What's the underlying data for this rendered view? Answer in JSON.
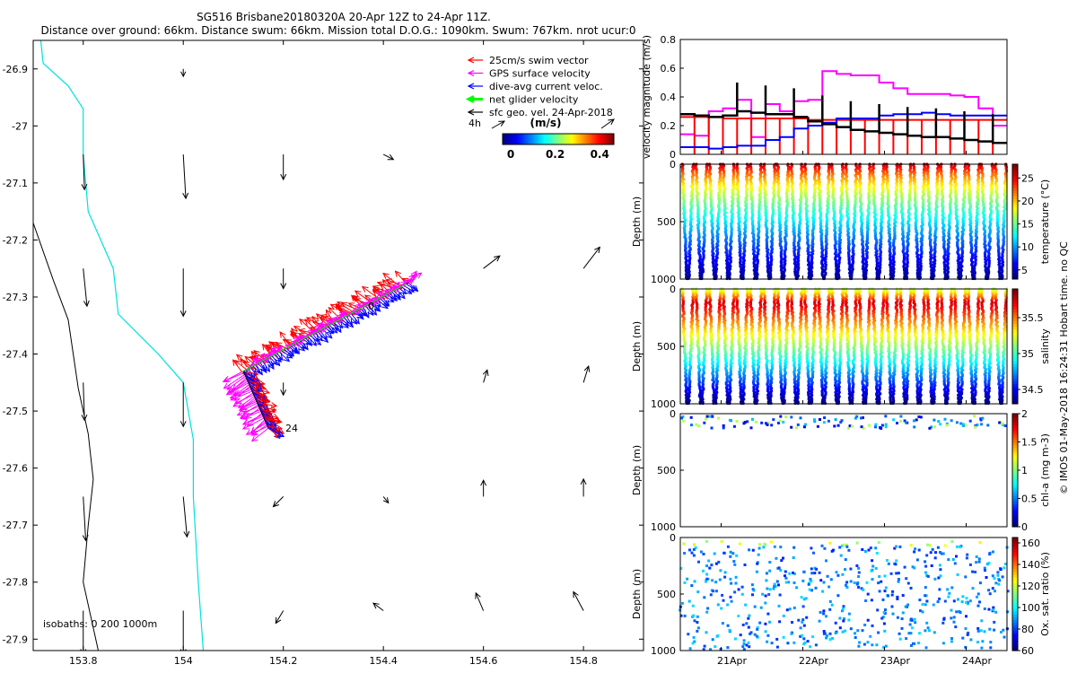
{
  "header": {
    "line1": "SG516 Brisbane20180320A 20-Apr 12Z to 24-Apr 11Z.",
    "line2": "Distance over ground: 66km. Distance swum: 66km. Mission total D.O.G.: 1090km. Swum: 767km. nrot ucur:0"
  },
  "colors": {
    "swim": "#ff0000",
    "gps": "#ff00ff",
    "dac": "#0000ff",
    "net": "#00ff00",
    "sfc": "#000000",
    "coast": "#00e0e0",
    "isobath": "#000000",
    "mag_gps": "#ff00ff",
    "mag_swim": "#ff0000",
    "mag_dac": "#0000ff",
    "mag_net": "#000000"
  },
  "chart_data": [
    {
      "type": "quiver-map",
      "xlim": [
        153.7,
        154.92
      ],
      "ylim": [
        -27.92,
        -26.85
      ],
      "xticks": [
        153.8,
        154,
        154.2,
        154.4,
        154.6,
        154.8
      ],
      "xticklabels": [
        "153.8",
        "154",
        "154.2",
        "154.4",
        "154.6",
        "154.8"
      ],
      "yticks": [
        -26.9,
        -27.0,
        -27.1,
        -27.2,
        -27.3,
        -27.4,
        -27.5,
        -27.6,
        -27.7,
        -27.8,
        -27.9
      ],
      "yticklabels": [
        "-26.9",
        "-27",
        "-27.1",
        "-27.2",
        "-27.3",
        "-27.4",
        "-27.5",
        "-27.6",
        "-27.7",
        "-27.8",
        "-27.9"
      ],
      "legend": [
        {
          "label": "25cm/s swim vector",
          "color": "#ff0000"
        },
        {
          "label": "GPS surface velocity",
          "color": "#ff00ff"
        },
        {
          "label": "dive-avg current veloc.",
          "color": "#0000ff"
        },
        {
          "label": "net glider velocity",
          "color": "#00ff00"
        },
        {
          "label": "sfc geo. vel. 24-Apr-2018",
          "color": "#000000"
        }
      ],
      "legend_position": "top-right",
      "colorbar": {
        "label": "(m/s)",
        "ticks": [
          "0",
          "0.2",
          "0.4"
        ],
        "range": [
          0,
          0.5
        ]
      },
      "annotations": [
        {
          "text": "4h",
          "lon": 154.51,
          "lat": -27.045
        },
        {
          "text": "0",
          "lon": 154.39,
          "lat": -27.335
        },
        {
          "text": "24",
          "lon": 154.23,
          "lat": -27.524
        }
      ],
      "isobath_label": "isobaths: 0   200  1000m",
      "coastline": [
        [
          153.715,
          -26.85
        ],
        [
          153.72,
          -26.89
        ],
        [
          153.77,
          -26.93
        ],
        [
          153.8,
          -26.97
        ],
        [
          153.8,
          -27.05
        ],
        [
          153.81,
          -27.15
        ],
        [
          153.86,
          -27.25
        ],
        [
          153.87,
          -27.33
        ],
        [
          153.95,
          -27.4
        ],
        [
          154.0,
          -27.45
        ],
        [
          154.02,
          -27.55
        ],
        [
          154.02,
          -27.65
        ],
        [
          154.03,
          -27.8
        ],
        [
          154.04,
          -27.92
        ]
      ],
      "isobath_1000m": [
        [
          153.7,
          -27.17
        ],
        [
          153.72,
          -27.22
        ],
        [
          153.74,
          -27.27
        ],
        [
          153.77,
          -27.34
        ],
        [
          153.78,
          -27.4
        ],
        [
          153.79,
          -27.46
        ],
        [
          153.81,
          -27.54
        ],
        [
          153.82,
          -27.62
        ],
        [
          153.81,
          -27.7
        ],
        [
          153.8,
          -27.8
        ],
        [
          153.83,
          -27.92
        ]
      ],
      "track": {
        "start": [
          154.45,
          -27.275
        ],
        "end": [
          154.12,
          -27.43
        ],
        "hook_end": [
          154.17,
          -27.53
        ]
      },
      "sfc_arrows": [
        {
          "lon": 153.8,
          "lat": -27.05,
          "u": 0.01,
          "v": -0.28
        },
        {
          "lon": 154.0,
          "lat": -27.05,
          "u": 0.02,
          "v": -0.35
        },
        {
          "lon": 154.2,
          "lat": -27.05,
          "u": 0.0,
          "v": -0.2
        },
        {
          "lon": 154.4,
          "lat": -27.05,
          "u": 0.08,
          "v": -0.04
        },
        {
          "lon": 153.8,
          "lat": -27.25,
          "u": 0.03,
          "v": -0.3
        },
        {
          "lon": 154.0,
          "lat": -27.25,
          "u": 0.0,
          "v": -0.38
        },
        {
          "lon": 154.2,
          "lat": -27.25,
          "u": 0.0,
          "v": -0.16
        },
        {
          "lon": 154.6,
          "lat": -27.25,
          "u": 0.13,
          "v": 0.1
        },
        {
          "lon": 154.8,
          "lat": -27.25,
          "u": 0.13,
          "v": 0.17
        },
        {
          "lon": 154.2,
          "lat": -27.45,
          "u": 0.0,
          "v": -0.1
        },
        {
          "lon": 154.6,
          "lat": -27.45,
          "u": 0.03,
          "v": 0.1
        },
        {
          "lon": 154.8,
          "lat": -27.45,
          "u": 0.04,
          "v": 0.13
        },
        {
          "lon": 153.8,
          "lat": -27.45,
          "u": 0.01,
          "v": -0.3
        },
        {
          "lon": 154.0,
          "lat": -27.45,
          "u": 0.0,
          "v": -0.35
        },
        {
          "lon": 153.8,
          "lat": -27.65,
          "u": 0.02,
          "v": -0.35
        },
        {
          "lon": 154.0,
          "lat": -27.65,
          "u": 0.03,
          "v": -0.32
        },
        {
          "lon": 154.2,
          "lat": -27.65,
          "u": -0.08,
          "v": -0.08
        },
        {
          "lon": 154.4,
          "lat": -27.65,
          "u": 0.04,
          "v": -0.05
        },
        {
          "lon": 154.6,
          "lat": -27.65,
          "u": 0.0,
          "v": 0.13
        },
        {
          "lon": 154.8,
          "lat": -27.65,
          "u": 0.0,
          "v": 0.14
        },
        {
          "lon": 153.8,
          "lat": -27.85,
          "u": 0.0,
          "v": -0.35
        },
        {
          "lon": 154.0,
          "lat": -27.85,
          "u": 0.0,
          "v": -0.35
        },
        {
          "lon": 154.2,
          "lat": -27.85,
          "u": -0.06,
          "v": -0.1
        },
        {
          "lon": 154.4,
          "lat": -27.85,
          "u": -0.08,
          "v": 0.06
        },
        {
          "lon": 154.6,
          "lat": -27.85,
          "u": -0.06,
          "v": 0.14
        },
        {
          "lon": 154.8,
          "lat": -27.85,
          "u": -0.08,
          "v": 0.15
        },
        {
          "lon": 154.0,
          "lat": -26.9,
          "u": 0.0,
          "v": -0.06
        }
      ]
    },
    {
      "type": "line",
      "ylabel": "velocity magnitude (m/s)",
      "ylim": [
        0,
        0.8
      ],
      "yticks": [
        "0",
        "0.2",
        "0.4",
        "0.6",
        "0.8"
      ],
      "series": [
        {
          "name": "GPS surface velocity",
          "color": "#ff00ff",
          "values": [
            0.14,
            0.13,
            0.3,
            0.32,
            0.38,
            0.12,
            0.35,
            0.3,
            0.37,
            0.38,
            0.58,
            0.56,
            0.55,
            0.55,
            0.5,
            0.46,
            0.42,
            0.42,
            0.42,
            0.41,
            0.4,
            0.32,
            0.2
          ]
        },
        {
          "name": "swim",
          "color": "#ff0000",
          "values": [
            0.26,
            0.26,
            0.26,
            0.25,
            0.25,
            0.25,
            0.25,
            0.25,
            0.25,
            0.24,
            0.24,
            0.24,
            0.24,
            0.24,
            0.24,
            0.24,
            0.24,
            0.24,
            0.24,
            0.24,
            0.24,
            0.24,
            0.24
          ]
        },
        {
          "name": "dive-avg current",
          "color": "#0000ff",
          "values": [
            0.05,
            0.05,
            0.04,
            0.05,
            0.06,
            0.06,
            0.1,
            0.12,
            0.18,
            0.2,
            0.22,
            0.25,
            0.25,
            0.25,
            0.27,
            0.28,
            0.28,
            0.29,
            0.28,
            0.27,
            0.27,
            0.27,
            0.27
          ]
        },
        {
          "name": "net glider",
          "color": "#000000",
          "values": [
            0.28,
            0.27,
            0.26,
            0.27,
            0.3,
            0.29,
            0.28,
            0.28,
            0.26,
            0.23,
            0.21,
            0.19,
            0.17,
            0.16,
            0.15,
            0.14,
            0.13,
            0.12,
            0.12,
            0.11,
            0.1,
            0.09,
            0.08
          ]
        }
      ]
    },
    {
      "type": "scatter",
      "panel": "temperature",
      "ylabel": "Depth (m)",
      "ylim": [
        1000,
        0
      ],
      "yticks": [
        "0",
        "500",
        "1000"
      ],
      "colorbar_label": "temperature (°C)",
      "colorbar_ticks": [
        "5",
        "10",
        "15",
        "20",
        "25"
      ],
      "crange": [
        3,
        28
      ],
      "profiles": 24
    },
    {
      "type": "scatter",
      "panel": "salinity",
      "ylabel": "Depth (m)",
      "ylim": [
        1000,
        0
      ],
      "yticks": [
        "0",
        "500",
        "1000"
      ],
      "colorbar_label": "salinity",
      "colorbar_ticks": [
        "34.5",
        "35",
        "35.5"
      ],
      "crange": [
        34.3,
        35.9
      ],
      "profiles": 24
    },
    {
      "type": "scatter",
      "panel": "chl-a",
      "ylabel": "Depth (m)",
      "ylim": [
        1000,
        0
      ],
      "yticks": [
        "0",
        "500",
        "1000"
      ],
      "colorbar_label": "chl-a (mg m-3)",
      "colorbar_ticks": [
        "0",
        "0.5",
        "1",
        "1.5",
        "2"
      ],
      "crange": [
        0,
        2
      ],
      "profiles": 24
    },
    {
      "type": "scatter",
      "panel": "oxygen",
      "ylabel": "Depth (m)",
      "ylim": [
        1000,
        0
      ],
      "yticks": [
        "0",
        "500",
        "1000"
      ],
      "colorbar_label": "Ox. sat. ratio (%)",
      "colorbar_ticks": [
        "60",
        "80",
        "100",
        "120",
        "140",
        "160"
      ],
      "crange": [
        60,
        165
      ],
      "profiles": 24,
      "xticklabels": [
        "21Apr",
        "22Apr",
        "23Apr",
        "24Apr"
      ]
    }
  ],
  "credit": "© IMOS 01-May-2018 16:24:31 Hobart time. no QC"
}
